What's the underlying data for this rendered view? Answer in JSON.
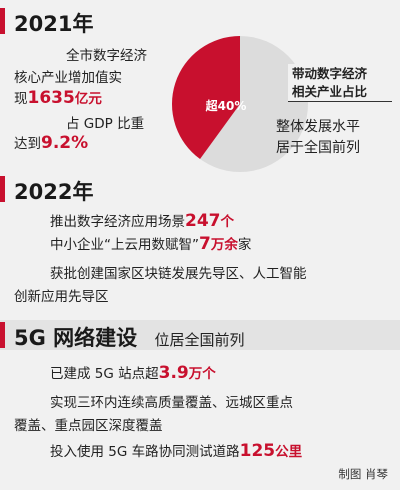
{
  "section2021": {
    "year": "2021年",
    "line1": "全市数字经济",
    "line2": "核心产业增加值实",
    "line3_pre": "现",
    "line3_num": "1635",
    "line3_unit": "亿元",
    "line4": "占 GDP 比重",
    "line5_pre": "达到",
    "line5_num": "9.2%",
    "pie_label": "超40%",
    "pie_value_percent": 40,
    "pie_caption1": "带动数字经济",
    "pie_caption2": "相关产业占比",
    "summary1": "整体发展水平",
    "summary2": "居于全国前列",
    "colors": {
      "accent": "#c8102e",
      "pie_rest": "#dcdcdc"
    }
  },
  "section2022": {
    "year": "2022年",
    "item1_pre": "推出数字经济应用场景",
    "item1_num": "247",
    "item1_unit": "个",
    "item2_pre": "中小企业“上云用数赋智”",
    "item2_num": "7",
    "item2_unit": "万余",
    "item2_post": "家",
    "item3_line1": "获批创建国家区块链发展先导区、人工智能",
    "item3_line2": "创新应用先导区"
  },
  "section5g": {
    "title": "5G 网络建设",
    "subtitle": "位居全国前列",
    "item1_pre": "已建成 5G 站点超",
    "item1_num": "3.9",
    "item1_unit": "万个",
    "item2_line1": "实现三环内连续高质量覆盖、远城区重点",
    "item2_line2": "覆盖、重点园区深度覆盖",
    "item3_pre": "投入使用 5G 车路协同测试道路",
    "item3_num": "125",
    "item3_unit": "公里"
  },
  "credit": "制图  肖琴"
}
